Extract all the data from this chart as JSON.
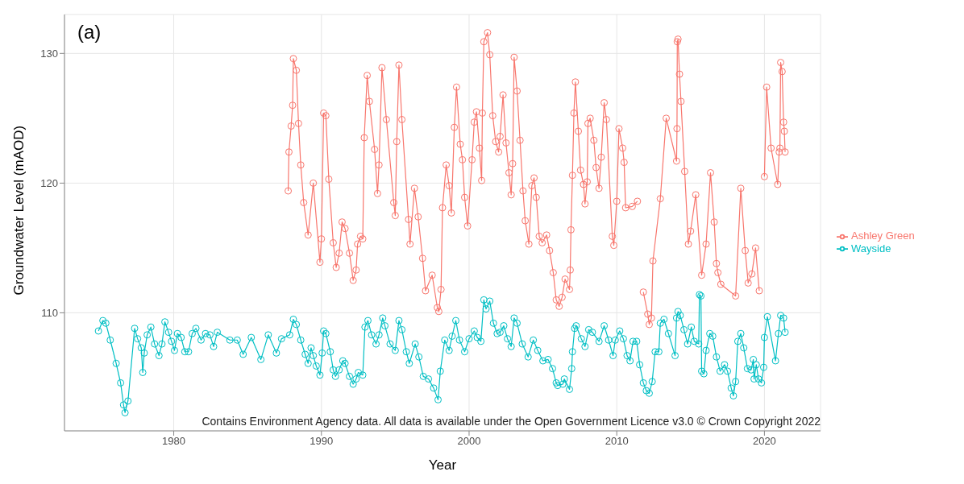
{
  "chart_data": {
    "type": "line",
    "xlabel": "Year",
    "ylabel": "Groundwater Level (mAOD)",
    "xlim": [
      1972.6,
      2023.8
    ],
    "ylim": [
      100.9,
      133.0
    ],
    "xticks": [
      1980,
      1990,
      2000,
      2010,
      2020
    ],
    "yticks": [
      110,
      120,
      130
    ],
    "grid": true,
    "legend": "right",
    "marker": "circle",
    "line_style": "solid",
    "annotations": [
      "(a)",
      "Contains Environment Agency data. All data is available under the Open Government Licence v3.0 © Crown Copyright 2022"
    ],
    "series": [
      {
        "name": "Ashley Green",
        "color": "#f8766d",
        "x": [
          1987.75,
          1987.8,
          1987.95,
          1988.05,
          1988.1,
          1988.3,
          1988.45,
          1988.6,
          1988.8,
          1989.1,
          1989.45,
          1989.9,
          1990.0,
          1990.15,
          1990.3,
          1990.5,
          1990.8,
          1991.0,
          1991.2,
          1991.4,
          1991.6,
          1991.9,
          1992.15,
          1992.35,
          1992.45,
          1992.65,
          1992.8,
          1992.9,
          1993.1,
          1993.25,
          1993.6,
          1993.8,
          1993.9,
          1994.1,
          1994.4,
          1994.9,
          1995.0,
          1995.1,
          1995.25,
          1995.45,
          1995.9,
          1996.0,
          1996.3,
          1996.55,
          1996.85,
          1997.05,
          1997.5,
          1997.85,
          1997.95,
          1998.1,
          1998.2,
          1998.45,
          1998.65,
          1998.8,
          1999.0,
          1999.15,
          1999.4,
          1999.55,
          1999.7,
          1999.9,
          2000.2,
          2000.35,
          2000.5,
          2000.7,
          2000.85,
          2000.9,
          2001.0,
          2001.25,
          2001.4,
          2001.6,
          2001.8,
          2002.0,
          2002.1,
          2002.3,
          2002.5,
          2002.7,
          2002.85,
          2002.95,
          2003.05,
          2003.25,
          2003.45,
          2003.65,
          2003.8,
          2004.05,
          2004.25,
          2004.4,
          2004.55,
          2004.75,
          2004.95,
          2005.25,
          2005.45,
          2005.7,
          2005.9,
          2006.1,
          2006.3,
          2006.5,
          2006.8,
          2006.85,
          2006.9,
          2007.0,
          2007.1,
          2007.2,
          2007.4,
          2007.55,
          2007.75,
          2007.85,
          2008.0,
          2008.05,
          2008.2,
          2008.45,
          2008.6,
          2008.8,
          2008.95,
          2009.15,
          2009.3,
          2009.7,
          2009.8,
          2010.0,
          2010.15,
          2010.4,
          2010.5,
          2010.6,
          2011.05,
          2011.4,
          2011.6,
          2011.8,
          2012.1,
          2012.2,
          2012.35,
          2012.45,
          2012.95,
          2013.35,
          2014.05,
          2014.08,
          2014.1,
          2014.15,
          2014.25,
          2014.35,
          2014.6,
          2014.85,
          2015.0,
          2015.35,
          2015.75,
          2016.05,
          2016.35,
          2016.6,
          2016.75,
          2016.85,
          2017.05,
          2018.05,
          2018.4,
          2018.7,
          2018.9,
          2019.15,
          2019.4,
          2019.65,
          2019.8,
          2020.0,
          2020.15,
          2020.45,
          2020.9,
          2021.0,
          2021.05,
          2021.1,
          2021.2,
          2021.3,
          2021.35,
          2021.4
        ],
        "values": [
          119.4,
          122.4,
          124.4,
          126.0,
          129.6,
          128.7,
          124.6,
          121.4,
          118.5,
          116.0,
          120.0,
          113.9,
          115.7,
          125.4,
          125.2,
          120.3,
          115.4,
          113.5,
          114.6,
          117.0,
          116.5,
          114.6,
          112.5,
          113.3,
          115.3,
          115.9,
          115.7,
          123.5,
          128.3,
          126.3,
          122.6,
          119.2,
          121.4,
          128.9,
          124.9,
          118.5,
          117.5,
          123.2,
          129.1,
          124.9,
          117.2,
          115.3,
          119.6,
          117.4,
          114.2,
          111.7,
          112.9,
          110.4,
          110.1,
          111.8,
          118.1,
          121.4,
          119.8,
          117.7,
          124.3,
          127.4,
          123.0,
          121.8,
          118.9,
          116.7,
          121.8,
          124.7,
          125.5,
          122.7,
          120.2,
          125.4,
          130.9,
          131.6,
          129.9,
          125.2,
          123.2,
          122.4,
          123.6,
          126.8,
          123.1,
          120.8,
          119.1,
          121.5,
          129.7,
          127.1,
          123.3,
          119.4,
          117.1,
          115.3,
          119.8,
          120.4,
          118.9,
          115.9,
          115.4,
          116.0,
          114.8,
          113.1,
          111.0,
          110.5,
          111.2,
          112.6,
          111.8,
          113.3,
          116.4,
          120.6,
          125.4,
          127.8,
          124.0,
          121.0,
          119.9,
          118.4,
          120.1,
          124.6,
          125.0,
          123.3,
          121.2,
          119.6,
          122.0,
          126.2,
          124.9,
          115.9,
          115.2,
          118.6,
          124.2,
          122.7,
          121.6,
          118.1,
          118.2,
          118.6,
          null,
          111.6,
          109.9,
          109.1,
          109.6,
          114.0,
          118.8,
          125.0,
          121.7,
          124.2,
          130.9,
          131.1,
          128.4,
          126.3,
          120.9,
          115.3,
          116.3,
          119.1,
          112.9,
          115.3,
          120.8,
          117.0,
          113.8,
          113.1,
          112.2,
          111.3,
          119.6,
          114.8,
          112.3,
          113.0,
          115.0,
          111.7,
          null,
          120.5,
          127.4,
          122.7,
          119.9,
          122.4,
          122.7,
          129.3,
          128.6,
          124.7,
          124.0,
          122.4
        ]
      },
      {
        "name": "Wayside",
        "color": "#00bfc4",
        "x": [
          1974.9,
          1975.2,
          1975.4,
          1975.7,
          1976.1,
          1976.4,
          1976.6,
          1976.7,
          1976.9,
          1977.35,
          1977.55,
          1977.8,
          1977.9,
          1978.0,
          1978.2,
          1978.45,
          1978.7,
          1979.0,
          1979.2,
          1979.4,
          1979.65,
          1979.85,
          1980.05,
          1980.25,
          1980.5,
          1980.75,
          1981.0,
          1981.25,
          1981.5,
          1981.85,
          1982.15,
          1982.45,
          1982.7,
          1982.95,
          1983.8,
          1984.3,
          1984.7,
          1985.25,
          1985.9,
          1986.4,
          1986.95,
          1987.3,
          1987.85,
          1988.1,
          1988.3,
          1988.6,
          1988.9,
          1989.1,
          1989.3,
          1989.45,
          1989.65,
          1989.9,
          1990.05,
          1990.15,
          1990.3,
          1990.6,
          1990.8,
          1990.95,
          1991.2,
          1991.45,
          1991.6,
          1991.9,
          1992.15,
          1992.35,
          1992.5,
          1992.8,
          1992.95,
          1993.15,
          1993.4,
          1993.7,
          1993.9,
          1994.15,
          1994.3,
          1994.65,
          1995.0,
          1995.25,
          1995.45,
          1995.75,
          1995.95,
          1996.35,
          1996.6,
          1996.9,
          1997.25,
          1997.6,
          1997.9,
          1998.05,
          1998.35,
          1998.65,
          1998.85,
          1999.1,
          1999.35,
          1999.7,
          2000.0,
          2000.35,
          2000.55,
          2000.8,
          2001.0,
          2001.15,
          2001.4,
          2001.65,
          2001.9,
          2002.1,
          2002.35,
          2002.6,
          2002.85,
          2003.05,
          2003.25,
          2003.6,
          2004.0,
          2004.35,
          2004.65,
          2005.0,
          2005.35,
          2005.65,
          2005.9,
          2006.0,
          2006.35,
          2006.45,
          2006.8,
          2006.95,
          2007.0,
          2007.15,
          2007.25,
          2007.6,
          2007.85,
          2008.1,
          2008.35,
          2008.8,
          2009.15,
          2009.45,
          2009.75,
          2009.9,
          2010.2,
          2010.45,
          2010.7,
          2010.9,
          2011.1,
          2011.35,
          2011.55,
          2011.8,
          2012.0,
          2012.2,
          2012.4,
          2012.6,
          2012.85,
          2012.95,
          2013.2,
          2013.5,
          2013.95,
          2014.05,
          2014.15,
          2014.3,
          2014.55,
          2014.8,
          2015.05,
          2015.25,
          2015.55,
          2015.6,
          2015.7,
          2015.75,
          2015.9,
          2016.05,
          2016.3,
          2016.5,
          2016.75,
          2017.0,
          2017.3,
          2017.5,
          2017.75,
          2017.9,
          2018.05,
          2018.2,
          2018.4,
          2018.6,
          2018.85,
          2019.1,
          2019.25,
          2019.3,
          2019.45,
          2019.6,
          2019.8,
          2019.95,
          2020.0,
          2020.2,
          2020.75,
          2020.95,
          2021.1,
          2021.3,
          2021.4
        ],
        "values": [
          108.6,
          109.4,
          109.2,
          107.9,
          106.1,
          104.6,
          102.9,
          102.3,
          103.2,
          108.8,
          108.0,
          107.3,
          105.4,
          106.9,
          108.3,
          108.9,
          107.6,
          106.7,
          107.6,
          109.3,
          108.5,
          107.8,
          107.1,
          108.4,
          108.1,
          107.0,
          107.0,
          108.4,
          108.8,
          107.9,
          108.4,
          108.3,
          107.4,
          108.5,
          107.9,
          107.9,
          106.8,
          108.1,
          106.4,
          108.3,
          106.9,
          108.0,
          108.3,
          109.5,
          109.1,
          107.9,
          106.8,
          106.1,
          107.3,
          106.7,
          105.9,
          105.2,
          106.9,
          108.6,
          108.4,
          107.0,
          105.6,
          105.1,
          105.6,
          106.3,
          106.1,
          105.1,
          104.5,
          104.9,
          105.4,
          105.2,
          108.9,
          109.4,
          108.3,
          107.6,
          108.3,
          109.6,
          109.0,
          107.6,
          107.1,
          109.4,
          108.7,
          107.0,
          106.1,
          107.6,
          106.6,
          105.1,
          104.9,
          104.2,
          103.3,
          105.5,
          107.9,
          107.1,
          108.2,
          109.4,
          107.9,
          107.0,
          108.0,
          108.6,
          108.1,
          107.8,
          111.0,
          110.3,
          110.9,
          109.2,
          108.4,
          108.5,
          109.0,
          108.0,
          107.4,
          109.6,
          109.2,
          107.6,
          106.6,
          107.9,
          107.1,
          106.3,
          106.4,
          105.7,
          104.6,
          104.4,
          104.5,
          104.9,
          104.1,
          105.7,
          107.0,
          108.8,
          109.0,
          108.0,
          107.4,
          108.7,
          108.5,
          107.8,
          109.0,
          107.9,
          106.7,
          107.9,
          108.6,
          108.0,
          106.7,
          106.3,
          107.8,
          107.8,
          106.0,
          104.6,
          104.0,
          103.8,
          104.7,
          107.0,
          107.0,
          109.2,
          109.5,
          108.4,
          106.7,
          109.6,
          110.1,
          109.8,
          108.7,
          107.6,
          108.9,
          107.8,
          107.6,
          111.4,
          111.3,
          105.5,
          105.3,
          107.1,
          108.4,
          108.2,
          106.6,
          105.5,
          106.0,
          105.5,
          104.2,
          103.6,
          104.7,
          107.8,
          108.4,
          107.3,
          105.7,
          105.6,
          106.4,
          104.9,
          106.0,
          104.9,
          104.6,
          105.8,
          108.1,
          109.7,
          106.3,
          108.4,
          109.8,
          109.6,
          108.5
        ]
      }
    ]
  }
}
